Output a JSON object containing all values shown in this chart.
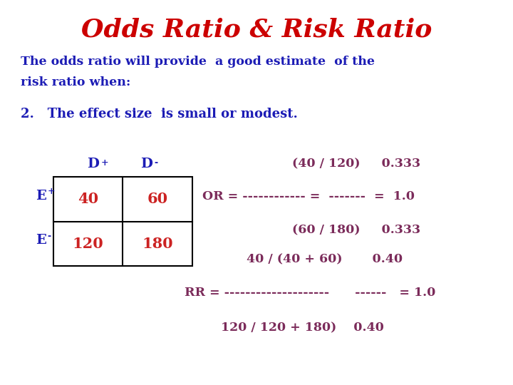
{
  "title": "Odds Ratio & Risk Ratio",
  "title_color": "#CC0000",
  "title_fontsize": 26,
  "bg_color": "#FFFFFF",
  "blue_color": "#1C1CB5",
  "red_color": "#CC2222",
  "purple_color": "#7B2B5A",
  "body_text_line1": "The odds ratio will provide  a good estimate  of the",
  "body_text_line2": "risk ratio when:",
  "point2": "2.   The effect size  is small or modest.",
  "table_vals": [
    [
      40,
      60
    ],
    [
      120,
      180
    ]
  ],
  "or_line1": "(40 / 120)     0.333",
  "or_eq": "OR = ------------ =  -------  =  1.0",
  "or_line3": "(60 / 180)     0.333",
  "rr_line1": "40 / (40 + 60)       0.40",
  "rr_eq": "RR = --------------------      ------   = 1.0",
  "rr_line3": "120 / 120 + 180)    0.40"
}
